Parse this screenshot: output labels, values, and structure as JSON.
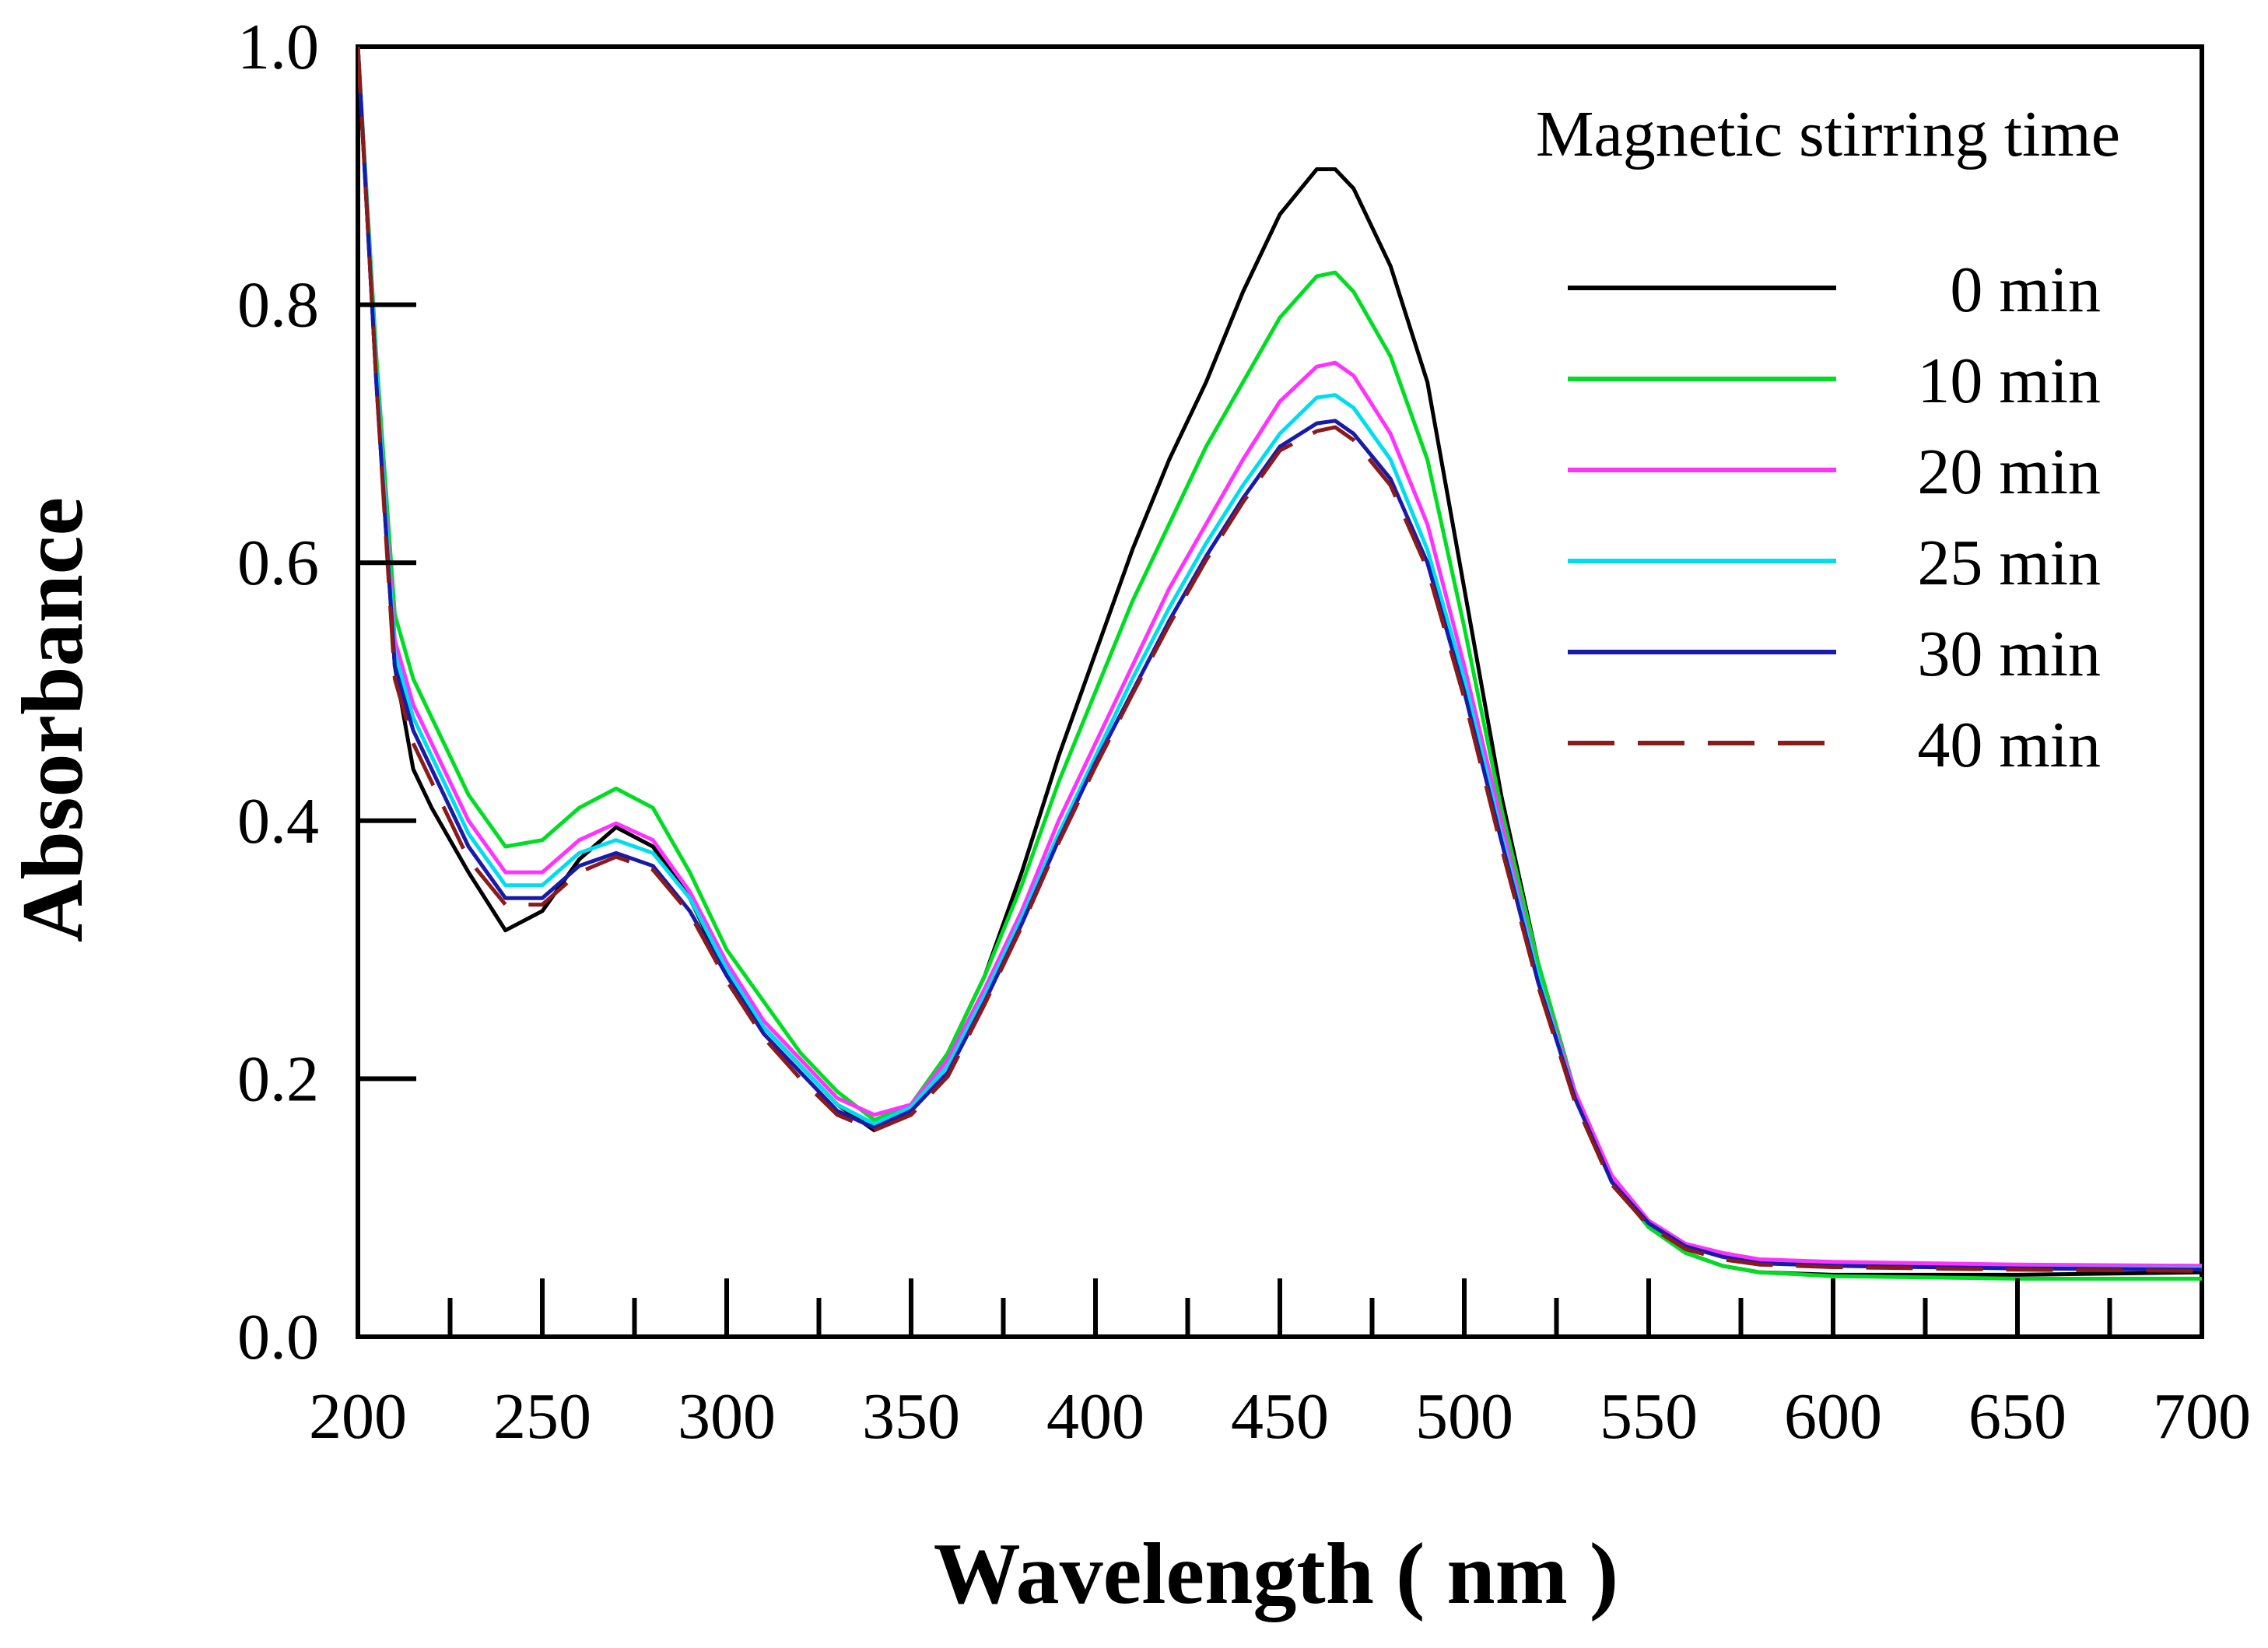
{
  "chart_data": {
    "type": "line",
    "xlabel": "Wavelength ( nm )",
    "ylabel": "Absorbance",
    "xlim": [
      200,
      700
    ],
    "ylim": [
      0.0,
      1.0
    ],
    "x_ticks": [
      "200",
      "250",
      "300",
      "350",
      "400",
      "450",
      "500",
      "550",
      "600",
      "650",
      "700"
    ],
    "y_ticks": [
      "0.0",
      "0.2",
      "0.4",
      "0.6",
      "0.8",
      "1.0"
    ],
    "grid": false,
    "legend": {
      "title": "Magnetic stirring time",
      "placement": "top-right"
    },
    "x": [
      200,
      205,
      210,
      215,
      220,
      230,
      240,
      250,
      260,
      270,
      280,
      290,
      300,
      310,
      320,
      330,
      340,
      350,
      360,
      370,
      380,
      390,
      400,
      410,
      420,
      430,
      440,
      450,
      460,
      465,
      470,
      480,
      490,
      500,
      510,
      520,
      530,
      540,
      550,
      560,
      570,
      580,
      600,
      650,
      700
    ],
    "series": [
      {
        "name": "0 min",
        "color": "#000000",
        "dash": "solid",
        "values": [
          1.0,
          0.74,
          0.52,
          0.44,
          0.41,
          0.36,
          0.315,
          0.33,
          0.37,
          0.395,
          0.38,
          0.34,
          0.28,
          0.24,
          0.21,
          0.18,
          0.16,
          0.175,
          0.22,
          0.28,
          0.36,
          0.45,
          0.53,
          0.61,
          0.68,
          0.74,
          0.81,
          0.87,
          0.905,
          0.905,
          0.89,
          0.83,
          0.74,
          0.58,
          0.42,
          0.29,
          0.19,
          0.12,
          0.085,
          0.065,
          0.055,
          0.05,
          0.048,
          0.048,
          0.05
        ]
      },
      {
        "name": "10 min",
        "color": "#00dd22",
        "dash": "solid",
        "values": [
          1.0,
          0.76,
          0.56,
          0.51,
          0.48,
          0.42,
          0.38,
          0.385,
          0.41,
          0.425,
          0.41,
          0.36,
          0.3,
          0.26,
          0.22,
          0.19,
          0.168,
          0.18,
          0.22,
          0.28,
          0.35,
          0.43,
          0.5,
          0.57,
          0.63,
          0.69,
          0.74,
          0.79,
          0.822,
          0.825,
          0.81,
          0.76,
          0.68,
          0.55,
          0.41,
          0.29,
          0.19,
          0.12,
          0.085,
          0.065,
          0.055,
          0.05,
          0.047,
          0.045,
          0.045
        ]
      },
      {
        "name": "20 min",
        "color": "#ff33ff",
        "dash": "solid",
        "values": [
          1.0,
          0.75,
          0.54,
          0.49,
          0.46,
          0.4,
          0.36,
          0.36,
          0.385,
          0.398,
          0.385,
          0.345,
          0.29,
          0.245,
          0.215,
          0.185,
          0.172,
          0.18,
          0.215,
          0.27,
          0.33,
          0.4,
          0.46,
          0.52,
          0.58,
          0.63,
          0.68,
          0.725,
          0.752,
          0.755,
          0.745,
          0.7,
          0.63,
          0.52,
          0.4,
          0.28,
          0.19,
          0.125,
          0.09,
          0.072,
          0.065,
          0.06,
          0.058,
          0.056,
          0.055
        ]
      },
      {
        "name": "25 min",
        "color": "#00ddee",
        "dash": "solid",
        "values": [
          1.0,
          0.75,
          0.53,
          0.48,
          0.45,
          0.39,
          0.35,
          0.35,
          0.375,
          0.385,
          0.375,
          0.34,
          0.285,
          0.24,
          0.21,
          0.18,
          0.165,
          0.178,
          0.21,
          0.265,
          0.325,
          0.39,
          0.45,
          0.51,
          0.565,
          0.615,
          0.66,
          0.7,
          0.728,
          0.73,
          0.72,
          0.68,
          0.61,
          0.51,
          0.39,
          0.28,
          0.185,
          0.12,
          0.088,
          0.07,
          0.062,
          0.057,
          0.055,
          0.053,
          0.053
        ]
      },
      {
        "name": "30 min",
        "color": "#1a1aaa",
        "dash": "solid",
        "values": [
          1.0,
          0.74,
          0.52,
          0.47,
          0.44,
          0.38,
          0.34,
          0.34,
          0.365,
          0.375,
          0.365,
          0.33,
          0.28,
          0.235,
          0.205,
          0.175,
          0.162,
          0.175,
          0.205,
          0.26,
          0.32,
          0.385,
          0.445,
          0.5,
          0.555,
          0.605,
          0.65,
          0.69,
          0.708,
          0.71,
          0.7,
          0.665,
          0.6,
          0.5,
          0.385,
          0.275,
          0.185,
          0.12,
          0.088,
          0.07,
          0.062,
          0.057,
          0.055,
          0.053,
          0.052
        ]
      },
      {
        "name": "40 min",
        "color": "#8b1a1a",
        "dash": "dashed",
        "values": [
          1.0,
          0.74,
          0.51,
          0.46,
          0.43,
          0.37,
          0.335,
          0.335,
          0.36,
          0.372,
          0.362,
          0.328,
          0.276,
          0.232,
          0.2,
          0.172,
          0.16,
          0.172,
          0.202,
          0.258,
          0.318,
          0.383,
          0.442,
          0.498,
          0.552,
          0.602,
          0.647,
          0.687,
          0.702,
          0.705,
          0.695,
          0.66,
          0.595,
          0.495,
          0.38,
          0.272,
          0.182,
          0.118,
          0.086,
          0.068,
          0.06,
          0.056,
          0.054,
          0.052,
          0.051
        ]
      }
    ]
  }
}
